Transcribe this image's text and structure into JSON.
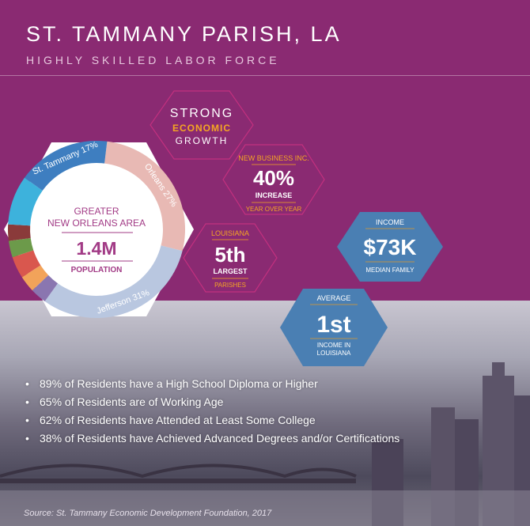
{
  "header": {
    "title": "ST. TAMMANY PARISH, LA",
    "subtitle": "HIGHLY SKILLED LABOR FORCE"
  },
  "growth_badge": {
    "line1": "STRONG",
    "line2": "ECONOMIC",
    "line3": "GROWTH"
  },
  "donut": {
    "region_line1": "GREATER",
    "region_line2": "NEW ORLEANS AREA",
    "value": "1.4M",
    "value_label": "POPULATION"
  },
  "stats": {
    "new_business": {
      "top": "NEW BUSINESS INC.",
      "value": "40%",
      "sub": "INCREASE",
      "bottom": "YEAR OVER YEAR"
    },
    "louisiana": {
      "top": "LOUISIANA",
      "value": "5th",
      "sub": "LARGEST",
      "bottom": "PARISHES"
    },
    "income": {
      "top": "INCOME",
      "value": "$73K",
      "bottom": "MEDIAN FAMILY"
    },
    "average": {
      "top": "AVERAGE",
      "value": "1st",
      "bottom_line1": "INCOME IN",
      "bottom_line2": "LOUISIANA"
    }
  },
  "bullets": [
    "89% of Residents have a High School Diploma or Higher",
    "65% of Residents are of Working Age",
    "62% of Residents have Attended at Least Some College",
    "38% of Residents have Achieved Advanced Degrees and/or Certifications"
  ],
  "source": "Source: St. Tammany Economic Development Foundation, 2017",
  "colors": {
    "background": "#8a2a72",
    "accent_orange": "#f5a623",
    "blue_hex": "#4a7fb3",
    "line_orange": "#e09a2d"
  },
  "chart_data": {
    "type": "pie",
    "categories": [
      "Orleans",
      "Jefferson",
      "Other 1",
      "Other 2",
      "Other 3",
      "Other 4",
      "Other 5",
      "Other 6",
      "St. Tammany"
    ],
    "labels": [
      "Orleans 27%",
      "Jefferson 31%",
      "",
      "",
      "",
      "",
      "",
      "",
      "St. Tammany 17%"
    ],
    "values": [
      27,
      31,
      3,
      3,
      4,
      3,
      3,
      9,
      17
    ],
    "colors": [
      "#e8b9b4",
      "#b9c7e0",
      "#8a76b0",
      "#f2a35a",
      "#d9574e",
      "#6c9a4a",
      "#8a3a3a",
      "#3db2dc",
      "#3e7ec0"
    ]
  }
}
